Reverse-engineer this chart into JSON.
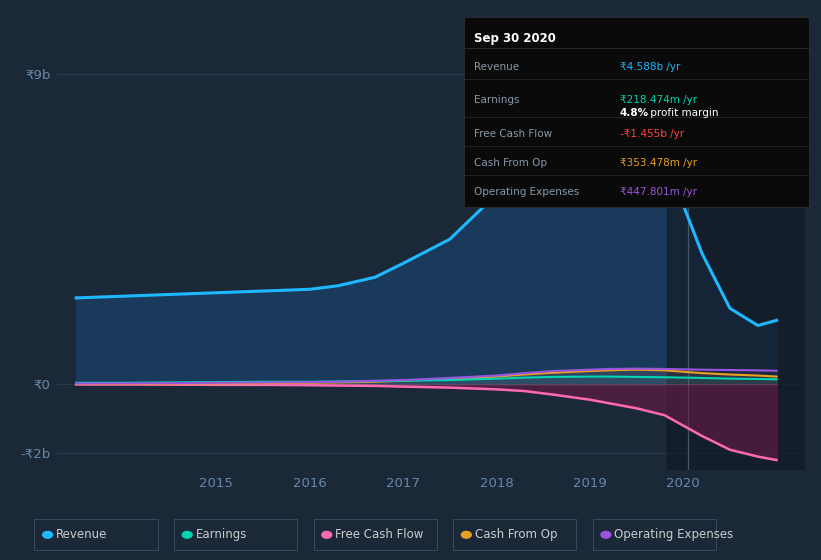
{
  "bg_color": "#1b2838",
  "plot_bg_color": "#1b2838",
  "chart_fill_color": "#1a3a5c",
  "dark_overlay_color": "#111a24",
  "title_box_bg": "#0a0a0a",
  "title_box_border": "#2a2a2a",
  "ytick_color": "#6688aa",
  "xtick_color": "#6688aa",
  "grid_color": "#2a3a50",
  "title_box": {
    "date": "Sep 30 2020",
    "rows": [
      {
        "label": "Revenue",
        "value": "₹4.588b /yr",
        "value_color": "#1eb8ff"
      },
      {
        "label": "Earnings",
        "value": "₹218.474m /yr",
        "value_color": "#00d4b0",
        "sub": "4.8% profit margin"
      },
      {
        "label": "Free Cash Flow",
        "value": "-₹1.455b /yr",
        "value_color": "#ff4444"
      },
      {
        "label": "Cash From Op",
        "value": "₹353.478m /yr",
        "value_color": "#e8a020"
      },
      {
        "label": "Operating Expenses",
        "value": "₹447.801m /yr",
        "value_color": "#9955dd"
      }
    ]
  },
  "ylim": [
    -2500000000.0,
    10000000000.0
  ],
  "yticks": [
    9000000000.0,
    0,
    -2000000000.0
  ],
  "ytick_labels": [
    "₹9b",
    "₹0",
    "-₹2b"
  ],
  "xlim": [
    2013.3,
    2021.3
  ],
  "xticks": [
    2015,
    2016,
    2017,
    2018,
    2019,
    2020
  ],
  "legend": [
    {
      "label": "Revenue",
      "color": "#1eb8ff"
    },
    {
      "label": "Earnings",
      "color": "#00d4b0"
    },
    {
      "label": "Free Cash Flow",
      "color": "#ff69b4"
    },
    {
      "label": "Cash From Op",
      "color": "#e8a020"
    },
    {
      "label": "Operating Expenses",
      "color": "#9955dd"
    }
  ],
  "series": {
    "x": [
      2013.5,
      2014.0,
      2014.5,
      2015.0,
      2015.5,
      2016.0,
      2016.3,
      2016.7,
      2017.0,
      2017.5,
      2018.0,
      2018.3,
      2018.6,
      2019.0,
      2019.2,
      2019.5,
      2019.8,
      2020.0,
      2020.2,
      2020.5,
      2020.8,
      2021.0
    ],
    "revenue": [
      2500000000.0,
      2550000000.0,
      2600000000.0,
      2650000000.0,
      2700000000.0,
      2750000000.0,
      2850000000.0,
      3100000000.0,
      3500000000.0,
      4200000000.0,
      5500000000.0,
      6500000000.0,
      7500000000.0,
      8500000000.0,
      8600000000.0,
      8200000000.0,
      7000000000.0,
      5200000000.0,
      3800000000.0,
      2200000000.0,
      1700000000.0,
      1850000000.0
    ],
    "earnings": [
      40000000.0,
      40000000.0,
      50000000.0,
      60000000.0,
      70000000.0,
      70000000.0,
      80000000.0,
      90000000.0,
      100000000.0,
      120000000.0,
      160000000.0,
      190000000.0,
      210000000.0,
      220000000.0,
      220000000.0,
      210000000.0,
      200000000.0,
      190000000.0,
      180000000.0,
      160000000.0,
      150000000.0,
      140000000.0
    ],
    "free_cash": [
      -10000000.0,
      -10000000.0,
      -15000000.0,
      -20000000.0,
      -20000000.0,
      -30000000.0,
      -40000000.0,
      -50000000.0,
      -70000000.0,
      -100000000.0,
      -150000000.0,
      -200000000.0,
      -300000000.0,
      -450000000.0,
      -550000000.0,
      -700000000.0,
      -900000000.0,
      -1200000000.0,
      -1500000000.0,
      -1900000000.0,
      -2100000000.0,
      -2200000000.0
    ],
    "cash_from_op": [
      10000000.0,
      10000000.0,
      15000000.0,
      20000000.0,
      30000000.0,
      40000000.0,
      50000000.0,
      70000000.0,
      100000000.0,
      150000000.0,
      220000000.0,
      280000000.0,
      330000000.0,
      380000000.0,
      400000000.0,
      420000000.0,
      400000000.0,
      360000000.0,
      320000000.0,
      280000000.0,
      250000000.0,
      220000000.0
    ],
    "op_expenses": [
      20000000.0,
      25000000.0,
      30000000.0,
      40000000.0,
      50000000.0,
      60000000.0,
      70000000.0,
      100000000.0,
      120000000.0,
      180000000.0,
      250000000.0,
      320000000.0,
      380000000.0,
      420000000.0,
      440000000.0,
      450000000.0,
      440000000.0,
      430000000.0,
      420000000.0,
      410000000.0,
      400000000.0,
      390000000.0
    ]
  },
  "vertical_line_x": 2020.05,
  "dark_overlay_start": 2019.83
}
